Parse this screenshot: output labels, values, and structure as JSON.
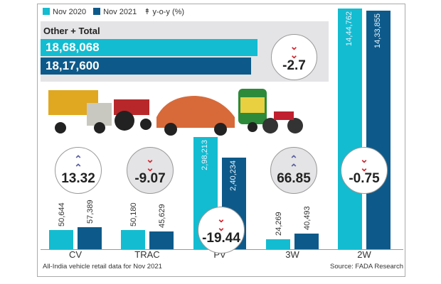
{
  "legend": {
    "nov2020": "Nov 2020",
    "nov2021": "Nov 2021",
    "yoy": "y-o-y (%)",
    "yoy_icon": "double-chevron-up-icon"
  },
  "colors": {
    "nov2020": "#13bcd0",
    "nov2021": "#0d5a8a",
    "up": "#5a5f9e",
    "down": "#d0262e"
  },
  "total": {
    "title": "Other + Total",
    "nov2020": "18,68,068",
    "nov2021": "18,17,600",
    "yoy": "-2.7",
    "direction": "down"
  },
  "chart_data": {
    "type": "bar",
    "categories": [
      "CV",
      "TRAC",
      "PV",
      "3W",
      "2W"
    ],
    "series": [
      {
        "name": "Nov 2020",
        "values": [
          50644,
          50180,
          298213,
          24269,
          1444762
        ]
      },
      {
        "name": "Nov 2021",
        "values": [
          57389,
          45629,
          240234,
          40493,
          1433855
        ]
      }
    ],
    "value_labels": [
      [
        "50,644",
        "57,389"
      ],
      [
        "50,180",
        "45,629"
      ],
      [
        "2,98,213",
        "2,40,234"
      ],
      [
        "24,269",
        "40,493"
      ],
      [
        "14,44,762",
        "14,33,855"
      ]
    ],
    "yoy": [
      "13.32",
      "-9.07",
      "-19.44",
      "66.85",
      "-0.75"
    ],
    "yoy_direction": [
      "up",
      "down",
      "down",
      "up",
      "down"
    ]
  },
  "footer": {
    "note": "All-India vehicle retail data for Nov 2021",
    "source": "Source: FADA Research"
  }
}
